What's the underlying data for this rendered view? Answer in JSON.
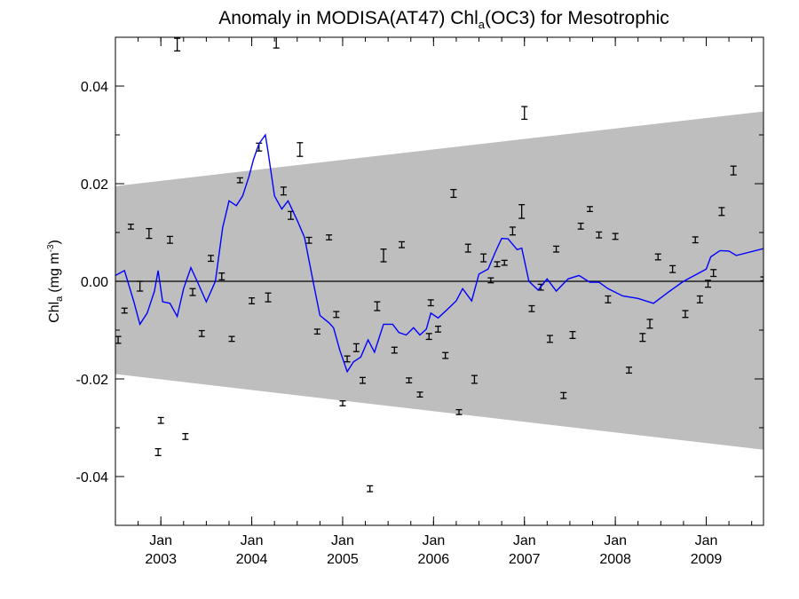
{
  "chart_data": {
    "type": "line",
    "title_main": "Anomaly in MODISA(AT47) Chl",
    "title_sub": "a",
    "title_rest": "(OC3) for Mesotrophic",
    "ylabel_main": "Chl",
    "ylabel_sub": "a",
    "ylabel_unit": "(mg m",
    "ylabel_sup": "-3",
    "ylabel_close": ")",
    "xlim": [
      2002.5,
      2009.63
    ],
    "ylim": [
      -0.05,
      0.05
    ],
    "y_ticks": [
      -0.04,
      -0.02,
      0.0,
      0.02,
      0.04
    ],
    "y_tick_labels": [
      "-0.04",
      "-0.02",
      "0.00",
      "0.02",
      "0.04"
    ],
    "x_ticks": [
      2003.0,
      2004.0,
      2005.0,
      2006.0,
      2007.0,
      2008.0,
      2009.0
    ],
    "x_tick_month_labels": [
      "Jan",
      "Jan",
      "Jan",
      "Jan",
      "Jan",
      "Jan",
      "Jan"
    ],
    "x_tick_year_labels": [
      "2003",
      "2004",
      "2005",
      "2006",
      "2007",
      "2008",
      "2009"
    ],
    "colors": {
      "band": "#bebebe",
      "line": "#0000ff",
      "points": "#000000",
      "zero_line": "#000000"
    },
    "band": {
      "upper": [
        [
          2002.5,
          0.0195
        ],
        [
          2009.63,
          0.0348
        ]
      ],
      "lower": [
        [
          2002.5,
          -0.019
        ],
        [
          2009.63,
          -0.0345
        ]
      ]
    },
    "series": [
      {
        "type": "line",
        "x": [
          2002.5,
          2002.6,
          2002.7,
          2002.77,
          2002.85,
          2002.93,
          2002.97,
          2003.02,
          2003.1,
          2003.18,
          2003.25,
          2003.33,
          2003.4,
          2003.5,
          2003.6,
          2003.68,
          2003.75,
          2003.83,
          2003.9,
          2003.97,
          2004.02,
          2004.08,
          2004.15,
          2004.18,
          2004.25,
          2004.33,
          2004.4,
          2004.5,
          2004.58,
          2004.68,
          2004.75,
          2004.85,
          2004.9,
          2004.97,
          2005.05,
          2005.12,
          2005.2,
          2005.28,
          2005.35,
          2005.45,
          2005.55,
          2005.62,
          2005.7,
          2005.78,
          2005.85,
          2005.92,
          2005.97,
          2006.05,
          2006.15,
          2006.25,
          2006.32,
          2006.42,
          2006.5,
          2006.6,
          2006.68,
          2006.75,
          2006.82,
          2006.92,
          2006.97,
          2007.05,
          2007.15,
          2007.25,
          2007.35,
          2007.48,
          2007.6,
          2007.72,
          2007.82,
          2007.92,
          2008.08,
          2008.25,
          2008.42,
          2008.6,
          2008.75,
          2008.9,
          2009.0,
          2009.05,
          2009.15,
          2009.25,
          2009.33,
          2009.63
        ],
        "y": [
          0.0012,
          0.0022,
          -0.004,
          -0.0088,
          -0.0065,
          -0.002,
          0.0022,
          -0.0042,
          -0.0045,
          -0.0072,
          -0.0015,
          0.0028,
          0.0,
          -0.0042,
          0.0,
          0.011,
          0.0165,
          0.0155,
          0.0175,
          0.0215,
          0.025,
          0.0282,
          0.03,
          0.0265,
          0.0175,
          0.0148,
          0.0165,
          0.0125,
          0.009,
          -0.0005,
          -0.007,
          -0.0085,
          -0.0095,
          -0.0142,
          -0.0185,
          -0.0165,
          -0.0155,
          -0.012,
          -0.0145,
          -0.0088,
          -0.0088,
          -0.0105,
          -0.011,
          -0.0095,
          -0.011,
          -0.0098,
          -0.0065,
          -0.0075,
          -0.0058,
          -0.004,
          -0.0015,
          -0.004,
          0.0015,
          0.0025,
          0.006,
          0.0088,
          0.0087,
          0.0065,
          0.0068,
          0.0,
          -0.0018,
          0.0005,
          -0.002,
          0.0005,
          0.0012,
          -0.0002,
          -0.0002,
          -0.0015,
          -0.003,
          -0.0035,
          -0.0045,
          -0.002,
          0.0,
          0.0015,
          0.0025,
          0.005,
          0.0063,
          0.0062,
          0.0053,
          0.0067
        ]
      },
      {
        "type": "errorbar",
        "x": [
          2002.53,
          2002.6,
          2002.67,
          2002.77,
          2002.87,
          2002.97,
          2003.0,
          2003.1,
          2003.18,
          2003.27,
          2003.35,
          2003.45,
          2003.55,
          2003.67,
          2003.78,
          2003.87,
          2004.0,
          2004.08,
          2004.18,
          2004.27,
          2004.35,
          2004.43,
          2004.53,
          2004.63,
          2004.72,
          2004.85,
          2004.93,
          2005.0,
          2005.05,
          2005.15,
          2005.22,
          2005.3,
          2005.38,
          2005.45,
          2005.57,
          2005.65,
          2005.73,
          2005.85,
          2005.95,
          2005.97,
          2006.05,
          2006.13,
          2006.22,
          2006.28,
          2006.38,
          2006.45,
          2006.55,
          2006.63,
          2006.7,
          2006.78,
          2006.87,
          2006.97,
          2007.0,
          2007.08,
          2007.18,
          2007.28,
          2007.35,
          2007.43,
          2007.53,
          2007.62,
          2007.72,
          2007.82,
          2007.92,
          2008.0,
          2008.15,
          2008.3,
          2008.38,
          2008.47,
          2008.63,
          2008.77,
          2008.88,
          2008.93,
          2009.02,
          2009.08,
          2009.17,
          2009.3,
          2009.63
        ],
        "y": [
          -0.012,
          -0.006,
          0.0112,
          -0.001,
          0.0098,
          -0.035,
          -0.0285,
          0.0085,
          0.0485,
          -0.0318,
          -0.0022,
          -0.0107,
          0.0047,
          0.001,
          -0.0118,
          0.0207,
          -0.004,
          0.0275,
          -0.0033,
          0.049,
          0.0185,
          0.0135,
          0.027,
          0.0084,
          -0.0103,
          0.009,
          -0.0068,
          -0.025,
          -0.0159,
          -0.0136,
          -0.0203,
          -0.0425,
          -0.0051,
          0.0053,
          -0.0141,
          0.0075,
          -0.0203,
          -0.0232,
          -0.0113,
          -0.0044,
          -0.0098,
          -0.0152,
          0.018,
          -0.0268,
          0.0068,
          -0.0201,
          0.0048,
          0.0002,
          0.0035,
          0.0038,
          0.0103,
          0.0143,
          0.0345,
          -0.0056,
          -0.0012,
          -0.0118,
          0.0066,
          -0.0234,
          -0.011,
          0.0113,
          0.0148,
          0.0095,
          -0.0037,
          0.0092,
          -0.0182,
          -0.0115,
          -0.0087,
          0.005,
          0.0025,
          -0.0067,
          0.0085,
          -0.0037,
          -0.0005,
          0.0017,
          0.0143,
          0.0227,
          0.0005
        ],
        "err": [
          0.0007,
          0.0005,
          0.0005,
          0.001,
          0.001,
          0.0007,
          0.0006,
          0.0007,
          0.0013,
          0.0006,
          0.0007,
          0.0006,
          0.0006,
          0.0007,
          0.0005,
          0.0005,
          0.0006,
          0.0008,
          0.0009,
          0.0012,
          0.0008,
          0.0008,
          0.0014,
          0.0006,
          0.0005,
          0.0005,
          0.0006,
          0.0005,
          0.0006,
          0.0008,
          0.0006,
          0.0006,
          0.0009,
          0.0013,
          0.0006,
          0.0006,
          0.0005,
          0.0005,
          0.0006,
          0.0006,
          0.0006,
          0.0006,
          0.0008,
          0.0005,
          0.0008,
          0.0008,
          0.0008,
          0.0005,
          0.0005,
          0.0005,
          0.0008,
          0.0014,
          0.0013,
          0.0006,
          0.0006,
          0.0007,
          0.0006,
          0.0006,
          0.0007,
          0.0006,
          0.0005,
          0.0006,
          0.0007,
          0.0006,
          0.0006,
          0.0008,
          0.0009,
          0.0006,
          0.0007,
          0.0007,
          0.0006,
          0.0007,
          0.0007,
          0.0007,
          0.0008,
          0.0009,
          0.0004
        ]
      }
    ]
  }
}
